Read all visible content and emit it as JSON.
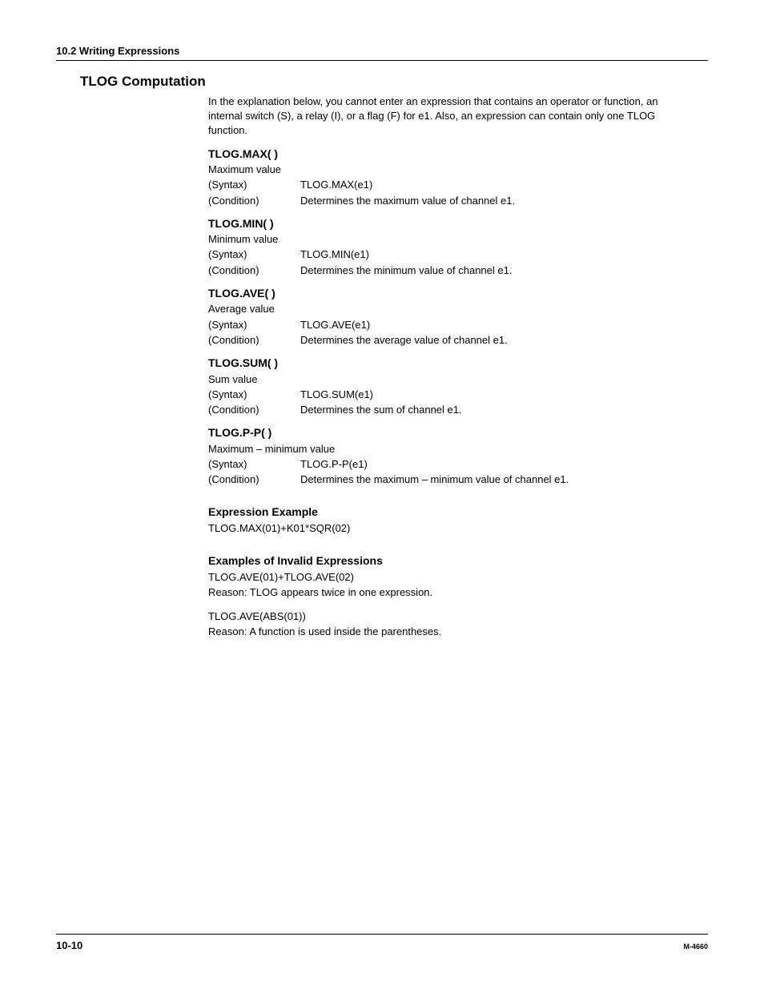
{
  "header": {
    "section": "10.2  Writing Expressions"
  },
  "main_heading": "TLOG Computation",
  "intro": "In the explanation below, you cannot enter an expression that contains an operator or function, an internal switch (S), a relay (I), or a flag (F) for e1. Also, an expression can contain only one TLOG function.",
  "functions": [
    {
      "title": "TLOG.MAX( )",
      "desc": "Maximum value",
      "syntax_label": "(Syntax)",
      "syntax_value": "TLOG.MAX(e1)",
      "condition_label": "(Condition)",
      "condition_value": "Determines the maximum value of channel e1."
    },
    {
      "title": "TLOG.MIN( )",
      "desc": "Minimum value",
      "syntax_label": "(Syntax)",
      "syntax_value": "TLOG.MIN(e1)",
      "condition_label": "(Condition)",
      "condition_value": "Determines the minimum value of channel e1."
    },
    {
      "title": "TLOG.AVE( )",
      "desc": "Average value",
      "syntax_label": "(Syntax)",
      "syntax_value": "TLOG.AVE(e1)",
      "condition_label": "(Condition)",
      "condition_value": "Determines the average value of channel e1."
    },
    {
      "title": "TLOG.SUM( )",
      "desc": "Sum value",
      "syntax_label": "(Syntax)",
      "syntax_value": "TLOG.SUM(e1)",
      "condition_label": "(Condition)",
      "condition_value": "Determines the sum of channel e1."
    },
    {
      "title": "TLOG.P-P( )",
      "desc": "Maximum – minimum value",
      "syntax_label": "(Syntax)",
      "syntax_value": "TLOG.P-P(e1)",
      "condition_label": "(Condition)",
      "condition_value": "Determines the maximum – minimum value of channel e1."
    }
  ],
  "expression_example": {
    "heading": "Expression Example",
    "text": "TLOG.MAX(01)+K01*SQR(02)"
  },
  "invalid_examples": {
    "heading": "Examples of Invalid Expressions",
    "items": [
      {
        "text": "TLOG.AVE(01)+TLOG.AVE(02)",
        "reason": "Reason: TLOG appears twice in one expression."
      },
      {
        "text": "TLOG.AVE(ABS(01))",
        "reason": "Reason: A function is used inside the parentheses."
      }
    ]
  },
  "footer": {
    "page": "10-10",
    "doc_id": "M-4660"
  }
}
